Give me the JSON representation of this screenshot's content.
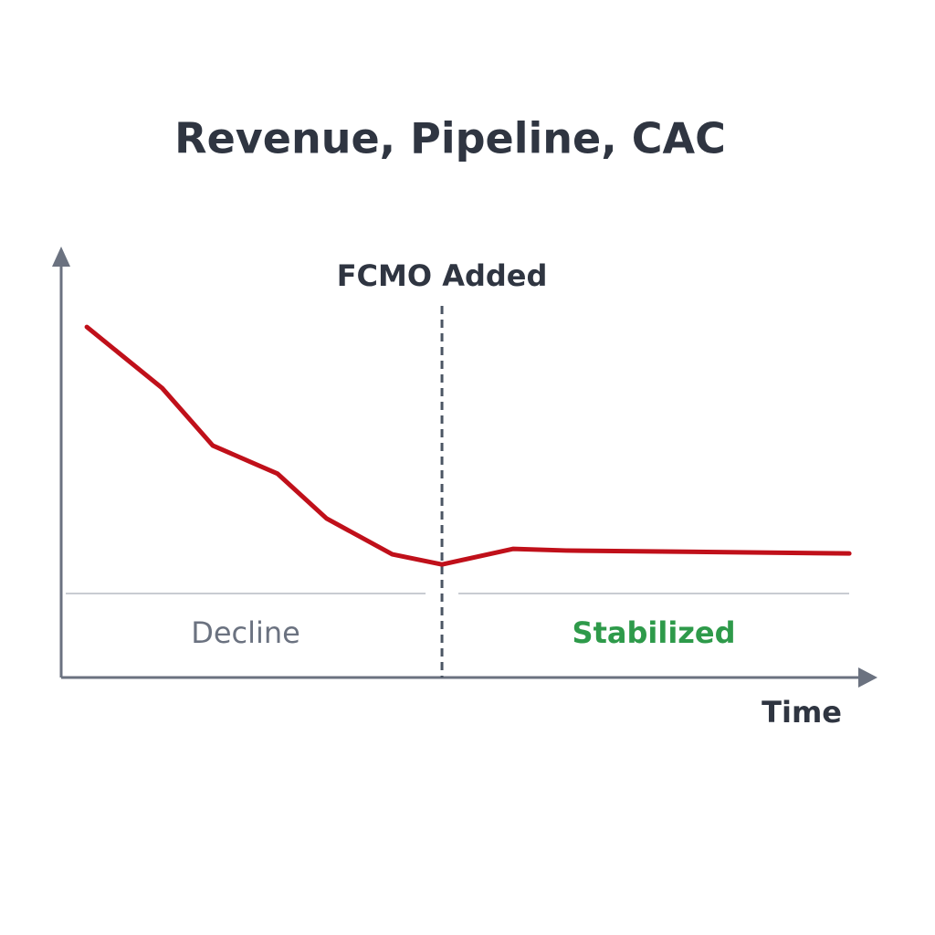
{
  "chart_data": {
    "type": "line",
    "title": "Revenue, Pipeline, CAC",
    "x_label": "Time",
    "x": [
      3.2,
      12.6,
      18.9,
      27.0,
      33.1,
      41.3,
      47.5,
      56.4,
      63.0,
      98.3
    ],
    "series": [
      {
        "color": "#c0101a",
        "values": [
          83.1,
          68.6,
          55.0,
          48.3,
          37.7,
          29.2,
          26.8,
          30.5,
          30.1,
          29.4
        ]
      }
    ],
    "xlim": [
      0,
      100
    ],
    "ylim": [
      0,
      100
    ],
    "annotations": [
      {
        "text": "FCMO Added",
        "x": 47.5
      }
    ],
    "baseline": 19.9,
    "regions": [
      {
        "label": "Decline",
        "color": "#6b7280"
      },
      {
        "label": "Stabilized",
        "color": "#2e9a4a"
      }
    ]
  }
}
